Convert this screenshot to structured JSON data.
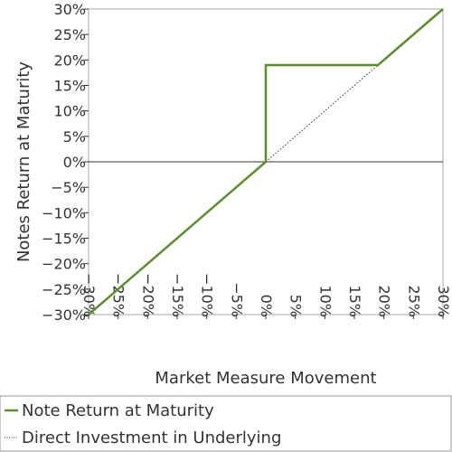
{
  "chart_data": {
    "type": "line",
    "title": "",
    "xlabel": "Market Measure Movement",
    "ylabel": "Notes Return at Maturity",
    "xlim": [
      -30,
      30
    ],
    "ylim": [
      -30,
      30
    ],
    "x_ticks": [
      -30,
      -25,
      -20,
      -15,
      -10,
      -5,
      0,
      5,
      10,
      15,
      20,
      25,
      30
    ],
    "y_ticks": [
      -30,
      -25,
      -20,
      -15,
      -10,
      -5,
      0,
      5,
      10,
      15,
      20,
      25,
      30
    ],
    "x_tick_labels": [
      "−30%",
      "−25%",
      "−20%",
      "−15%",
      "−10%",
      "−5%",
      "0%",
      "5%",
      "10%",
      "15%",
      "20%",
      "25%",
      "30%"
    ],
    "y_tick_labels": [
      "−30%",
      "−25%",
      "−20%",
      "−15%",
      "−10%",
      "−5%",
      "0%",
      "5%",
      "10%",
      "15%",
      "20%",
      "25%",
      "30%"
    ],
    "grid": false,
    "legend_position": "bottom",
    "series": [
      {
        "name": "Note Return at Maturity",
        "style": "solid",
        "color": "#5b8f29",
        "points": [
          [
            -30,
            -30
          ],
          [
            0,
            0
          ],
          [
            0,
            19
          ],
          [
            19,
            19
          ],
          [
            30,
            30
          ]
        ]
      },
      {
        "name": "Direct Investment in Underlying",
        "style": "dotted",
        "color": "#333333",
        "points": [
          [
            0,
            0
          ],
          [
            30,
            30
          ]
        ]
      }
    ]
  }
}
